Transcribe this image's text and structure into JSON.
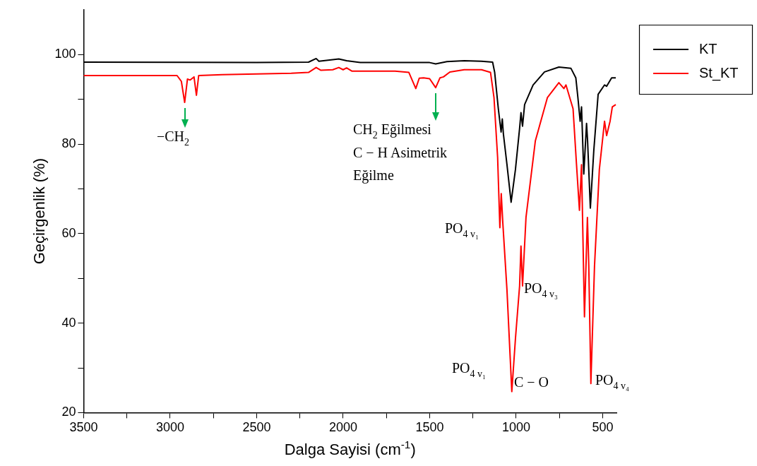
{
  "chart_data": {
    "type": "line",
    "xlabel": "Dalga Sayisi (cm$^{-1}$)",
    "ylabel": "Geçirgenlik (%)",
    "xlim": [
      3500,
      420
    ],
    "ylim": [
      20,
      110
    ],
    "xticks": [
      3500,
      {
        "value": 3250,
        "label": null
      },
      3000,
      {
        "value": 2750,
        "label": null
      },
      2500,
      {
        "value": 2250,
        "label": null
      },
      2000,
      {
        "value": 1750,
        "label": null
      },
      1500,
      {
        "value": 1250,
        "label": null
      },
      1000,
      {
        "value": 750,
        "label": null
      },
      500
    ],
    "yticks": [
      20,
      {
        "value": 30,
        "label": null
      },
      40,
      {
        "value": 50,
        "label": null
      },
      60,
      {
        "value": 70,
        "label": null
      },
      80,
      {
        "value": 90,
        "label": null
      },
      100
    ],
    "grid": false,
    "legend": "top right",
    "marker": "none",
    "line_style": "solid",
    "series": [
      {
        "name": "KT",
        "color": "#000000",
        "x": [
          3500,
          2500,
          2200,
          2156,
          2140,
          2025,
          1980,
          1900,
          1500,
          1465,
          1400,
          1300,
          1200,
          1136,
          1124,
          1103,
          1087,
          1080,
          1074,
          1053,
          1029,
          1004,
          980,
          972,
          963,
          951,
          902,
          836,
          753,
          683,
          655,
          643,
          630,
          622,
          609,
          593,
          587,
          571,
          551,
          526,
          489,
          477,
          448,
          424
        ],
        "values": [
          98.3,
          98.2,
          98.3,
          99.1,
          98.5,
          99.0,
          98.6,
          98.2,
          98.2,
          97.9,
          98.4,
          98.6,
          98.5,
          98.3,
          96.0,
          87.9,
          82.7,
          85.6,
          82.4,
          75.4,
          67.0,
          74.3,
          83.5,
          87.0,
          84.0,
          88.8,
          93.2,
          96.1,
          97.2,
          96.9,
          94.8,
          90.4,
          85.1,
          88.3,
          73.3,
          84.6,
          80.7,
          65.7,
          78.6,
          91.1,
          93.2,
          92.9,
          94.8,
          94.8
        ]
      },
      {
        "name": "St_KT",
        "color": "#ff0000",
        "x": [
          3500,
          3000,
          2960,
          2935,
          2916,
          2900,
          2884,
          2862,
          2848,
          2835,
          2700,
          2300,
          2200,
          2156,
          2130,
          2060,
          2025,
          2000,
          1980,
          1950,
          1700,
          1620,
          1580,
          1560,
          1535,
          1500,
          1465,
          1440,
          1420,
          1383,
          1300,
          1200,
          1148,
          1128,
          1107,
          1094,
          1086,
          1077,
          1053,
          1025,
          1004,
          980,
          972,
          963,
          943,
          889,
          819,
          753,
          724,
          712,
          671,
          651,
          634,
          622,
          605,
          588,
          580,
          568,
          547,
          519,
          489,
          477,
          457,
          444,
          424
        ],
        "values": [
          95.3,
          95.3,
          95.3,
          94.0,
          89.3,
          94.5,
          94.3,
          95.0,
          90.9,
          95.3,
          95.5,
          95.8,
          96.0,
          97.1,
          96.5,
          96.6,
          97.1,
          96.6,
          97.0,
          96.3,
          96.3,
          96.0,
          92.4,
          94.7,
          94.8,
          94.6,
          92.6,
          94.8,
          95.0,
          96.1,
          96.6,
          96.6,
          96.0,
          90.4,
          77.0,
          61.3,
          68.9,
          62.4,
          47.4,
          24.7,
          36.5,
          48.3,
          57.2,
          48.3,
          63.6,
          80.7,
          90.4,
          93.7,
          92.4,
          93.2,
          87.9,
          75.4,
          65.2,
          75.4,
          41.4,
          63.6,
          52.7,
          26.5,
          52.7,
          74.3,
          85.1,
          81.9,
          85.1,
          88.3,
          88.8
        ]
      }
    ],
    "annotations": [
      {
        "text": "−CH$_{2}$",
        "x": 2916,
        "y": 89.3
      },
      {
        "text": "CH$_{2}$ Eğilmesi",
        "x": 1465,
        "y": 92.6
      },
      "C − H Asimetrik",
      "Eğilme",
      "PO$_{4 v₁}$",
      "PO$_{4 v₃}$",
      "PO$_{4 v₁}$",
      "C − O",
      "PO$_{4 v₄}$"
    ]
  }
}
